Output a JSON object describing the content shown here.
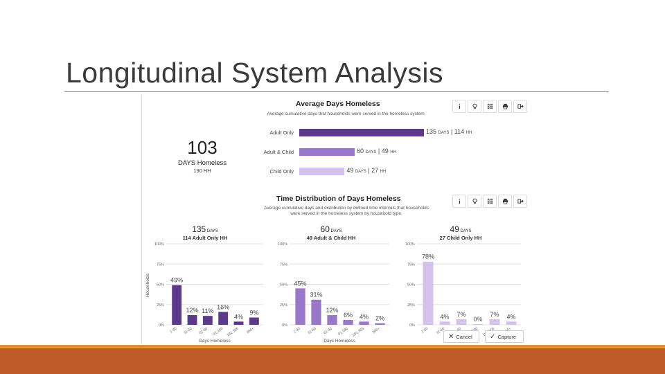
{
  "slide": {
    "title": "Longitudinal System Analysis"
  },
  "colors": {
    "dark_purple": "#5b3a8e",
    "mid_purple": "#9a78c9",
    "light_purple": "#d3c3ec",
    "orange_band": "#bd5a28",
    "orange_line": "#e5902e"
  },
  "toolbar_icons": [
    "info-icon",
    "lightbulb-icon",
    "grid-icon",
    "print-icon",
    "export-icon"
  ],
  "average": {
    "title": "Average Days Homeless",
    "subtitle": "Average cumulative days that households were served in the homeless system.",
    "total_days": "103",
    "total_label": "DAYS Homeless",
    "total_hh": "190 HH",
    "rows": [
      {
        "label": "Adult Only",
        "days": "135",
        "hh": "114",
        "value": 135
      },
      {
        "label": "Adult & Child",
        "days": "60",
        "hh": "49",
        "value": 60
      },
      {
        "label": "Child Only",
        "days": "49",
        "hh": "27",
        "value": 49
      }
    ],
    "days_unit": "DAYS",
    "hh_unit": "HH"
  },
  "distribution": {
    "title": "Time Distribution of Days Homeless",
    "subtitle_line1": "Average cumulative days and distribution by defined time intervals that households",
    "subtitle_line2": "were served in the homeless system by household type.",
    "ylabel": "Households",
    "xlabel": "Days Homeless"
  },
  "chart_data": [
    {
      "type": "bar",
      "header_value": "135",
      "header_unit": "DAYS",
      "header_sub": "114 Adult Only HH",
      "categories": [
        "1-30",
        "31-60",
        "61-90",
        "91-180",
        "181-365",
        "366+"
      ],
      "values": [
        49,
        12,
        11,
        16,
        4,
        9
      ],
      "data_labels": [
        "49%",
        "12%",
        "11%",
        "16%",
        "4%",
        "9%"
      ],
      "ylabel": "Households",
      "xlabel": "Days Homeless",
      "yticks": [
        "100%",
        "75%",
        "50%",
        "25%",
        "0%"
      ],
      "ylim": [
        0,
        100
      ],
      "grid": true
    },
    {
      "type": "bar",
      "header_value": "60",
      "header_unit": "DAYS",
      "header_sub": "49 Adult & Child HH",
      "categories": [
        "1-30",
        "31-60",
        "61-90",
        "91-180",
        "181-365",
        "366+"
      ],
      "values": [
        45,
        31,
        12,
        6,
        4,
        2
      ],
      "data_labels": [
        "45%",
        "31%",
        "12%",
        "6%",
        "4%",
        "2%"
      ],
      "xlabel": "Days Homeless",
      "yticks": [
        "100%",
        "75%",
        "50%",
        "25%",
        "0%"
      ],
      "ylim": [
        0,
        100
      ],
      "grid": true
    },
    {
      "type": "bar",
      "header_value": "49",
      "header_unit": "DAYS",
      "header_sub": "27 Child Only HH",
      "categories": [
        "1-30",
        "31-60",
        "61-90",
        "91-180",
        "181-365",
        "366+"
      ],
      "values": [
        78,
        4,
        7,
        0,
        7,
        4
      ],
      "data_labels": [
        "78%",
        "4%",
        "7%",
        "0%",
        "7%",
        "4%"
      ],
      "yticks": [
        "100%",
        "75%",
        "50%",
        "25%",
        "0%"
      ],
      "ylim": [
        0,
        100
      ],
      "grid": true
    }
  ],
  "overlay": {
    "cancel_label": "Cancel",
    "capture_label": "Capture"
  }
}
